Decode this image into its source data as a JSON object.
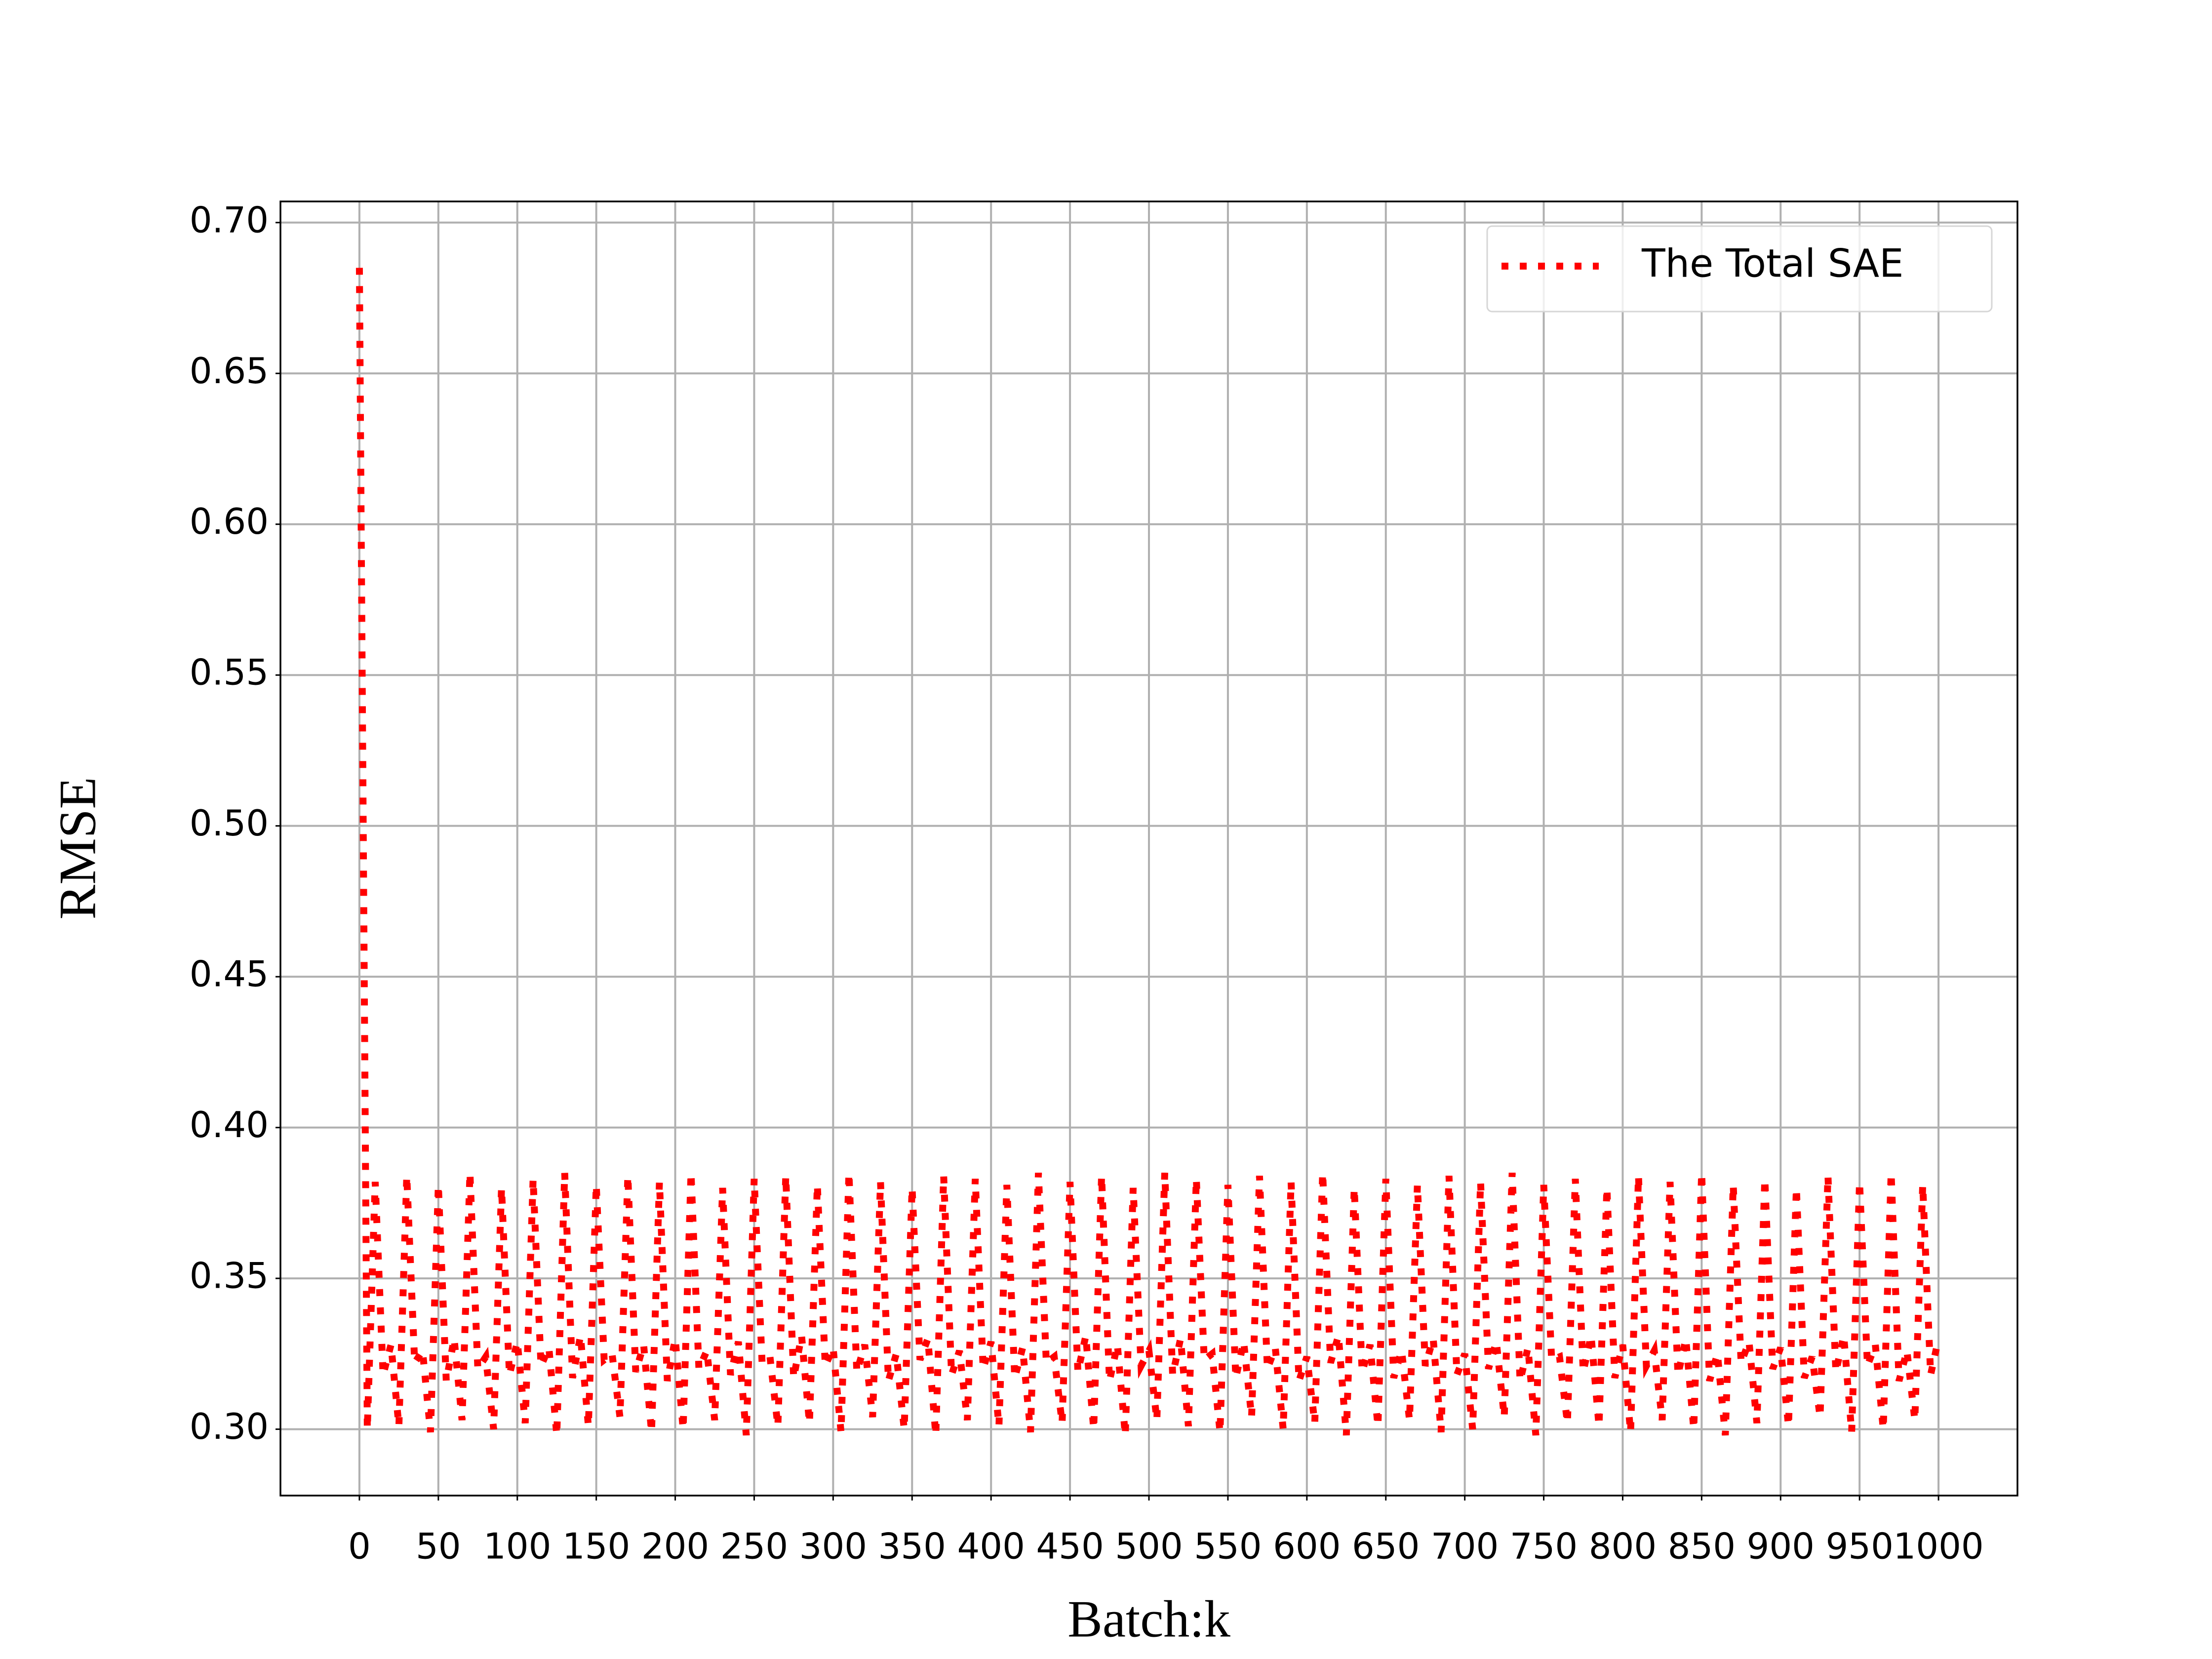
{
  "chart_data": {
    "type": "line",
    "xlabel": "Batch:k",
    "ylabel": "RMSE",
    "x": [
      0,
      5,
      10,
      15,
      20,
      25,
      30,
      35,
      40,
      45,
      50,
      55,
      60,
      65,
      70,
      75,
      80,
      85,
      90,
      95,
      100,
      105,
      110,
      115,
      120,
      125,
      130,
      135,
      140,
      145,
      150,
      155,
      160,
      165,
      170,
      175,
      180,
      185,
      190,
      195,
      200,
      205,
      210,
      215,
      220,
      225,
      230,
      235,
      240,
      245,
      250,
      255,
      260,
      265,
      270,
      275,
      280,
      285,
      290,
      295,
      300,
      305,
      310,
      315,
      320,
      325,
      330,
      335,
      340,
      345,
      350,
      355,
      360,
      365,
      370,
      375,
      380,
      385,
      390,
      395,
      400,
      405,
      410,
      415,
      420,
      425,
      430,
      435,
      440,
      445,
      450,
      455,
      460,
      465,
      470,
      475,
      480,
      485,
      490,
      495,
      500,
      505,
      510,
      515,
      520,
      525,
      530,
      535,
      540,
      545,
      550,
      555,
      560,
      565,
      570,
      575,
      580,
      585,
      590,
      595,
      600,
      605,
      610,
      615,
      620,
      625,
      630,
      635,
      640,
      645,
      650,
      655,
      660,
      665,
      670,
      675,
      680,
      685,
      690,
      695,
      700,
      705,
      710,
      715,
      720,
      725,
      730,
      735,
      740,
      745,
      750,
      755,
      760,
      765,
      770,
      775,
      780,
      785,
      790,
      795,
      800,
      805,
      810,
      815,
      820,
      825,
      830,
      835,
      840,
      845,
      850,
      855,
      860,
      865,
      870,
      875,
      880,
      885,
      890,
      895,
      900,
      905,
      910,
      915,
      920,
      925,
      930,
      935,
      940,
      945,
      950,
      955,
      960,
      965,
      970,
      975,
      980,
      985,
      990,
      995,
      1000
    ],
    "series": [
      {
        "name": "The Total SAE",
        "color": "#ff0000",
        "values": [
          0.685,
          0.3,
          0.382,
          0.318,
          0.328,
          0.301,
          0.384,
          0.322,
          0.326,
          0.299,
          0.381,
          0.316,
          0.33,
          0.303,
          0.385,
          0.32,
          0.324,
          0.3,
          0.38,
          0.318,
          0.329,
          0.302,
          0.383,
          0.321,
          0.327,
          0.298,
          0.385,
          0.317,
          0.331,
          0.301,
          0.381,
          0.323,
          0.325,
          0.304,
          0.384,
          0.319,
          0.328,
          0.299,
          0.382,
          0.316,
          0.33,
          0.3,
          0.385,
          0.32,
          0.326,
          0.303,
          0.38,
          0.318,
          0.329,
          0.298,
          0.383,
          0.322,
          0.324,
          0.301,
          0.384,
          0.317,
          0.331,
          0.302,
          0.381,
          0.321,
          0.327,
          0.299,
          0.385,
          0.319,
          0.328,
          0.304,
          0.382,
          0.316,
          0.325,
          0.3,
          0.38,
          0.323,
          0.33,
          0.298,
          0.384,
          0.318,
          0.326,
          0.303,
          0.383,
          0.32,
          0.329,
          0.301,
          0.381,
          0.317,
          0.327,
          0.299,
          0.385,
          0.322,
          0.324,
          0.302,
          0.382,
          0.319,
          0.331,
          0.3,
          0.384,
          0.316,
          0.328,
          0.298,
          0.38,
          0.321,
          0.326,
          0.303,
          0.385,
          0.318,
          0.33,
          0.301,
          0.383,
          0.323,
          0.325,
          0.299,
          0.381,
          0.317,
          0.329,
          0.304,
          0.384,
          0.32,
          0.327,
          0.3,
          0.382,
          0.316,
          0.324,
          0.302,
          0.385,
          0.322,
          0.331,
          0.298,
          0.38,
          0.319,
          0.328,
          0.301,
          0.383,
          0.317,
          0.326,
          0.303,
          0.381,
          0.321,
          0.33,
          0.299,
          0.384,
          0.318,
          0.325,
          0.3,
          0.382,
          0.32,
          0.329,
          0.304,
          0.385,
          0.316,
          0.327,
          0.298,
          0.381,
          0.323,
          0.324,
          0.302,
          0.383,
          0.319,
          0.331,
          0.301,
          0.38,
          0.317,
          0.328,
          0.299,
          0.384,
          0.321,
          0.326,
          0.303,
          0.382,
          0.318,
          0.33,
          0.3,
          0.385,
          0.316,
          0.325,
          0.298,
          0.381,
          0.322,
          0.329,
          0.302,
          0.383,
          0.32,
          0.327,
          0.301,
          0.38,
          0.317,
          0.324,
          0.304,
          0.384,
          0.319,
          0.331,
          0.299,
          0.382,
          0.321,
          0.328,
          0.3,
          0.385,
          0.316,
          0.326,
          0.303,
          0.381,
          0.318,
          0.33
        ]
      }
    ],
    "xlim": [
      -50,
      1050
    ],
    "ylim": [
      0.278,
      0.707
    ],
    "xticks": [
      0,
      50,
      100,
      150,
      200,
      250,
      300,
      350,
      400,
      450,
      500,
      550,
      600,
      650,
      700,
      750,
      800,
      850,
      900,
      950,
      1000
    ],
    "yticks": [
      {
        "value": 0.3,
        "label": "0.30"
      },
      0.35,
      {
        "value": 0.4,
        "label": "0.40"
      },
      0.45,
      {
        "value": 0.5,
        "label": "0.50"
      },
      0.55,
      {
        "value": 0.6,
        "label": "0.60"
      },
      0.65,
      {
        "value": 0.7,
        "label": "0.70"
      }
    ],
    "grid": true,
    "legend": "upper right"
  }
}
